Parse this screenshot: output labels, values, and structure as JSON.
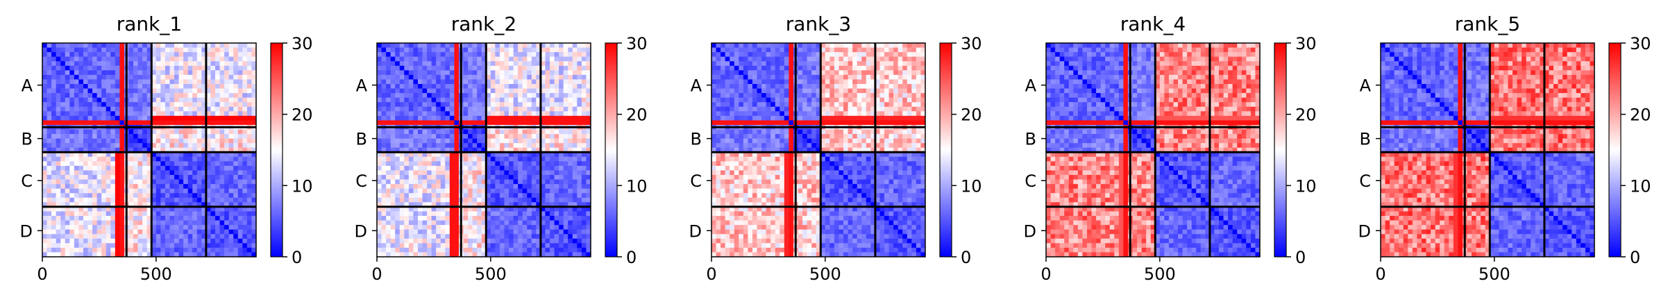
{
  "chart_data": {
    "type": "heatmap",
    "figure_layout": "1x5 grid of heatmaps, each with its own colorbar on the right",
    "colormap": {
      "name": "bwr",
      "low_color": "#0000ff",
      "mid_color": "#ffffff",
      "high_color": "#ff0000",
      "range": [
        0,
        30
      ],
      "ticks": [
        "0",
        "10",
        "20",
        "30"
      ]
    },
    "xlim": [
      0,
      940
    ],
    "ylim": [
      940,
      0
    ],
    "x_ticks": [
      {
        "value": 0,
        "label": "0"
      },
      {
        "value": 500,
        "label": "500"
      }
    ],
    "y_tick_labels": [
      {
        "value": 185,
        "label": "A"
      },
      {
        "value": 420,
        "label": "B"
      },
      {
        "value": 605,
        "label": "C"
      },
      {
        "value": 825,
        "label": "D"
      }
    ],
    "chain_boundaries": [
      370,
      480,
      720
    ],
    "chain_ranges": {
      "A": [
        0,
        370
      ],
      "B": [
        370,
        480
      ],
      "C": [
        480,
        720
      ],
      "D": [
        720,
        940
      ]
    },
    "panels": [
      {
        "title": "rank_1",
        "block_means": [
          [
            6,
            7,
            14,
            14
          ],
          [
            7,
            4,
            16,
            16
          ],
          [
            14,
            16,
            5,
            6
          ],
          [
            14,
            16,
            6,
            5
          ]
        ],
        "between_dimers": 28,
        "c_row_value": 25
      },
      {
        "title": "rank_2",
        "block_means": [
          [
            6,
            7,
            14,
            14
          ],
          [
            7,
            4,
            16,
            16
          ],
          [
            14,
            16,
            5,
            6
          ],
          [
            14,
            16,
            6,
            5
          ]
        ],
        "between_dimers": 26,
        "c_row_value": 26
      },
      {
        "title": "rank_3",
        "block_means": [
          [
            6,
            7,
            18,
            18
          ],
          [
            7,
            4,
            18,
            18
          ],
          [
            18,
            18,
            5,
            6
          ],
          [
            18,
            18,
            6,
            5
          ]
        ],
        "between_dimers": 25,
        "c_row_value": 24
      },
      {
        "title": "rank_4",
        "block_means": [
          [
            6,
            7,
            22,
            22
          ],
          [
            7,
            4,
            22,
            22
          ],
          [
            22,
            22,
            5,
            6
          ],
          [
            22,
            22,
            6,
            5
          ]
        ],
        "between_dimers": 22,
        "c_row_value": 26
      },
      {
        "title": "rank_5",
        "block_means": [
          [
            6,
            7,
            23,
            23
          ],
          [
            7,
            4,
            23,
            23
          ],
          [
            23,
            23,
            5,
            6
          ],
          [
            23,
            23,
            6,
            5
          ]
        ],
        "between_dimers": 24,
        "c_row_value": 26
      }
    ]
  }
}
